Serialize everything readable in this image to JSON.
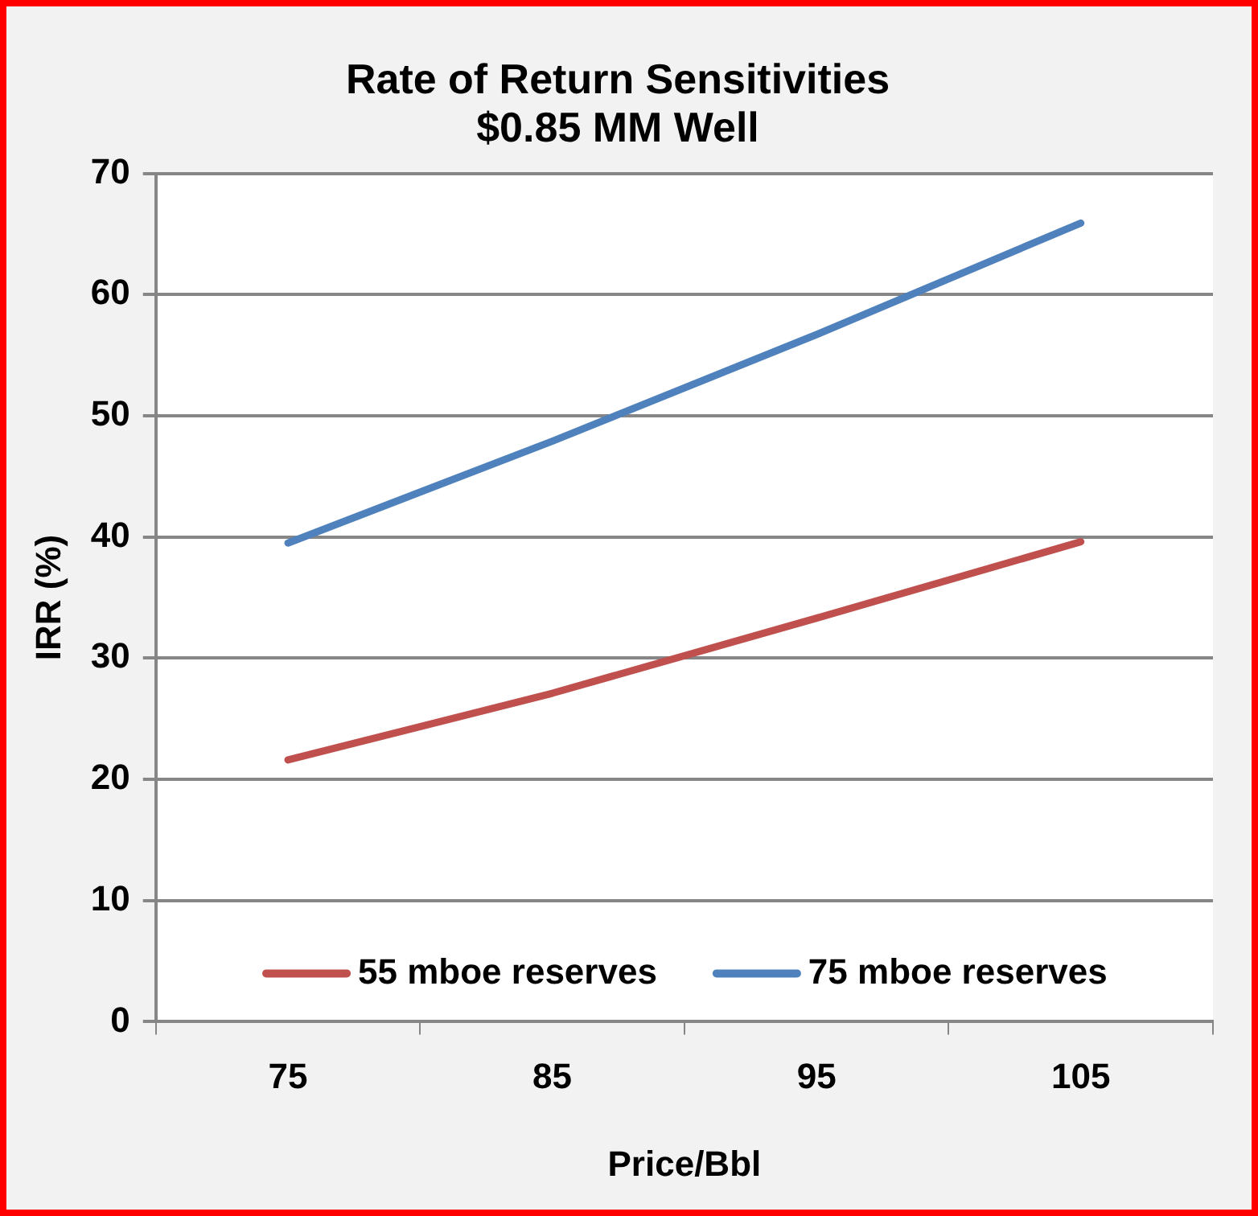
{
  "chart_data": {
    "type": "line",
    "title": "Rate of Return Sensitivities",
    "subtitle": "$0.85 MM Well",
    "xlabel": "Price/Bbl",
    "ylabel": "IRR (%)",
    "categories": [
      "75",
      "85",
      "95",
      "105"
    ],
    "series": [
      {
        "name": "55 mboe reserves",
        "color": "#c0504d",
        "values": [
          21.6,
          27.1,
          33.3,
          39.6
        ]
      },
      {
        "name": "75 mboe reserves",
        "color": "#4f81bd",
        "values": [
          39.5,
          47.9,
          56.7,
          65.9
        ]
      }
    ],
    "ylim": [
      0,
      70
    ],
    "yticks": [
      0,
      10,
      20,
      30,
      40,
      50,
      60,
      70
    ],
    "grid": "y",
    "legend": "bottom",
    "marker": "none",
    "line_style": "solid"
  }
}
